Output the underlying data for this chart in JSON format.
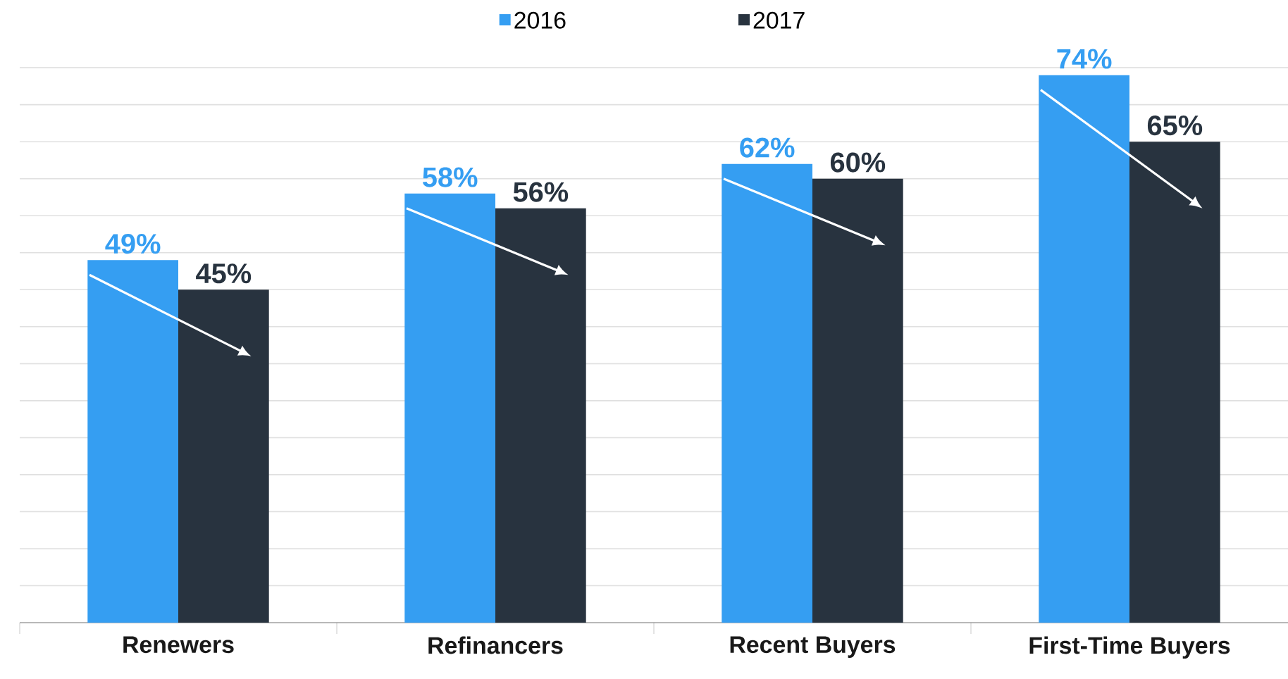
{
  "chart_data": {
    "type": "bar",
    "categories": [
      "Renewers",
      "Refinancers",
      "Recent Buyers",
      "First-Time Buyers"
    ],
    "series": [
      {
        "name": "2016",
        "color": "#359ef2",
        "values": [
          49,
          58,
          62,
          74
        ],
        "value_labels": [
          "49%",
          "58%",
          "62%",
          "74%"
        ]
      },
      {
        "name": "2017",
        "color": "#28333f",
        "values": [
          45,
          56,
          60,
          65
        ],
        "value_labels": [
          "45%",
          "56%",
          "60%",
          "65%"
        ]
      }
    ],
    "tick_labels": "x",
    "grid": "y",
    "legend": "top"
  }
}
